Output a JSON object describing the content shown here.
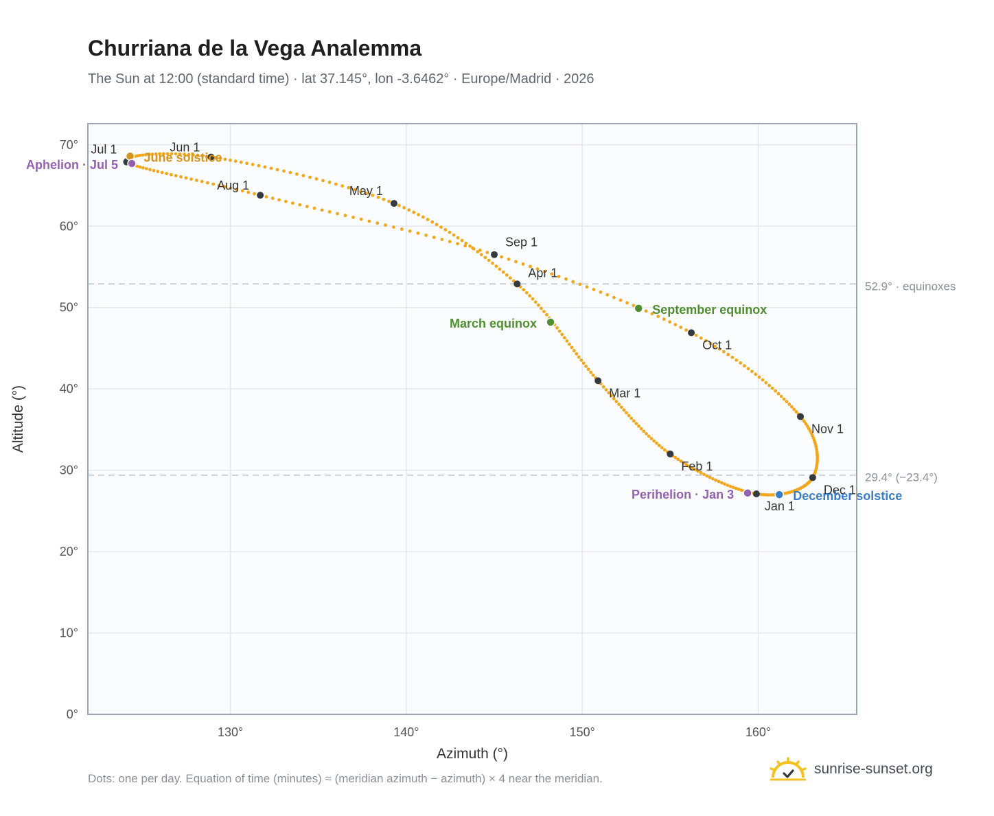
{
  "header": {
    "title": "Churriana de la Vega Analemma",
    "subtitle": "The Sun at 12:00 (standard time) · lat 37.145°, lon -3.6462° · Europe/Madrid · 2026"
  },
  "footer": {
    "note": "Dots: one per day. Equation of time (minutes) ≈ (meridian azimuth − azimuth) × 4 near the meridian.",
    "brand": "sunrise-sunset.org"
  },
  "colors": {
    "curve": "#f2a71b",
    "month_dot": "#343a42",
    "equinox": "#4f8f2f",
    "june_solstice": "#d7941a",
    "december_solstice": "#3b7dc4",
    "apsis": "#9460b0",
    "grid": "#e3e8ee",
    "plot_bg": "#fafcfe",
    "reference_line": "#b8c2cc"
  },
  "chart_data": {
    "type": "scatter",
    "xlabel": "Azimuth (°)",
    "ylabel": "Altitude (°)",
    "xlim": [
      121.9,
      165.6
    ],
    "ylim": [
      0,
      72.6
    ],
    "xticks": [
      130,
      140,
      150,
      160
    ],
    "yticks": [
      0,
      10,
      20,
      30,
      40,
      50,
      60,
      70
    ],
    "x_tick_labels": [
      "130°",
      "140°",
      "150°",
      "160°"
    ],
    "y_tick_labels": [
      "0°",
      "10°",
      "20°",
      "30°",
      "40°",
      "50°",
      "60°",
      "70°"
    ],
    "grid": true,
    "month_markers": [
      {
        "label": "Jan 1",
        "azimuth": 159.9,
        "altitude": 27.1
      },
      {
        "label": "Feb 1",
        "azimuth": 155.0,
        "altitude": 32.0
      },
      {
        "label": "Mar 1",
        "azimuth": 150.9,
        "altitude": 41.0
      },
      {
        "label": "Apr 1",
        "azimuth": 146.3,
        "altitude": 52.9
      },
      {
        "label": "May 1",
        "azimuth": 139.3,
        "altitude": 62.8
      },
      {
        "label": "Jun 1",
        "azimuth": 128.9,
        "altitude": 68.5
      },
      {
        "label": "Jul 1",
        "azimuth": 124.1,
        "altitude": 67.9
      },
      {
        "label": "Aug 1",
        "azimuth": 131.7,
        "altitude": 63.8
      },
      {
        "label": "Sep 1",
        "azimuth": 145.0,
        "altitude": 56.5
      },
      {
        "label": "Oct 1",
        "azimuth": 156.2,
        "altitude": 46.9
      },
      {
        "label": "Nov 1",
        "azimuth": 162.4,
        "altitude": 36.6
      },
      {
        "label": "Dec 1",
        "azimuth": 163.1,
        "altitude": 29.1
      }
    ],
    "events": [
      {
        "label": "March equinox",
        "azimuth": 148.2,
        "altitude": 48.2,
        "color_key": "equinox"
      },
      {
        "label": "June solstice",
        "azimuth": 124.3,
        "altitude": 68.6,
        "color_key": "june_solstice"
      },
      {
        "label": "September equinox",
        "azimuth": 153.2,
        "altitude": 49.9,
        "color_key": "equinox"
      },
      {
        "label": "December solstice",
        "azimuth": 161.2,
        "altitude": 27.0,
        "color_key": "december_solstice"
      },
      {
        "label": "Perihelion · Jan 3",
        "azimuth": 159.4,
        "altitude": 27.2,
        "color_key": "apsis"
      },
      {
        "label": "Aphelion · Jul 5",
        "azimuth": 124.4,
        "altitude": 67.7,
        "color_key": "apsis"
      }
    ],
    "reference_lines": [
      {
        "altitude": 52.9,
        "label": "52.9° · equinoxes"
      },
      {
        "altitude": 29.4,
        "label": "29.4° (−23.4°)"
      }
    ]
  }
}
